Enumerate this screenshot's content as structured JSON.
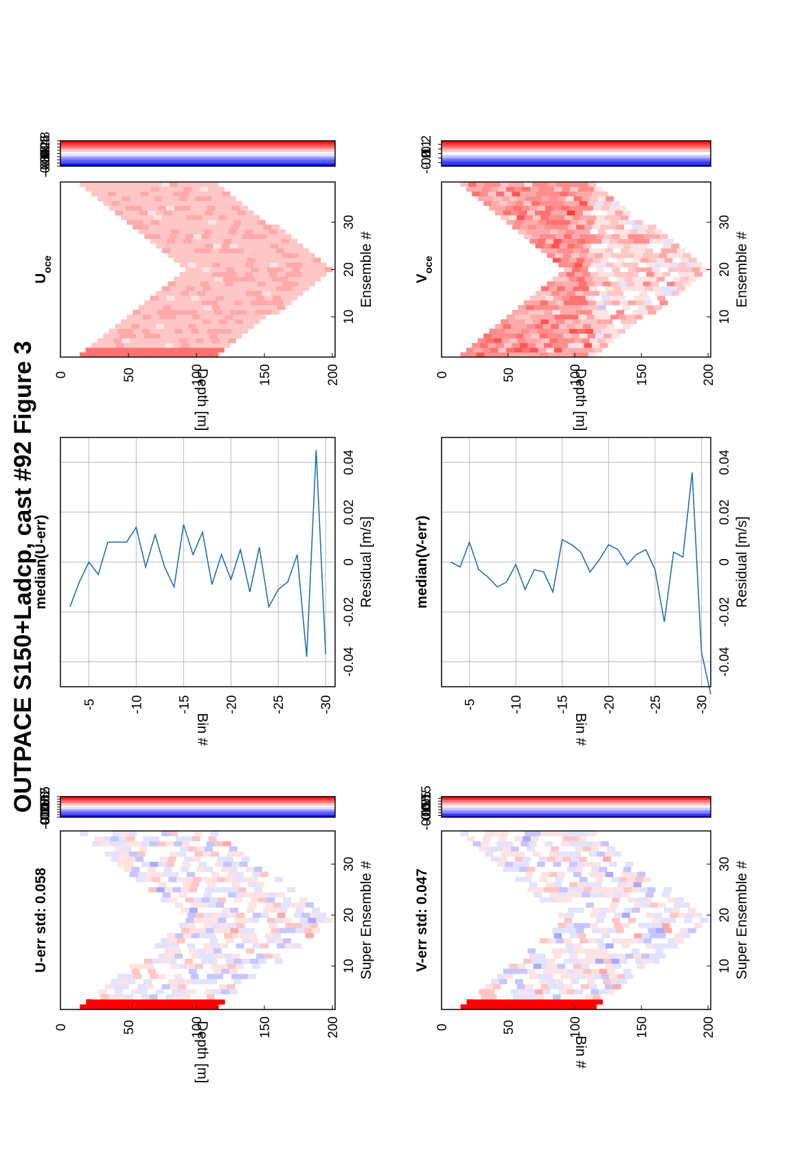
{
  "figure_title": "OUTPACE S150+Ladcp, cast #92  Figure 3",
  "colors": {
    "positive": "#ff0000",
    "negative": "#0000ff",
    "zero": "#ffffff",
    "line": "#1f6fae",
    "grid": "#b8b8b8"
  },
  "chart_data": [
    {
      "id": "u_err",
      "type": "heatmap",
      "title": "U-err std: 0.058",
      "xlabel": "Super Ensemble #",
      "ylabel": "Depth [m]",
      "x_ticks": [
        "10",
        "20",
        "30"
      ],
      "x_tick_values": [
        10,
        20,
        30
      ],
      "y_ticks": [
        "0",
        "50",
        "100",
        "150",
        "200"
      ],
      "y_tick_values": [
        0,
        50,
        100,
        150,
        200
      ],
      "xlim": [
        1.5,
        36.5
      ],
      "ylim": [
        0,
        202
      ],
      "colorbar_ticks": [
        "0.2",
        "0.15",
        "0.1",
        "0.05",
        "0",
        "-0.05",
        "-0.1",
        "-0.15",
        "-0.2"
      ],
      "colorbar_values": [
        0.2,
        0.15,
        0.1,
        0.05,
        0,
        -0.05,
        -0.1,
        -0.15,
        -0.2
      ],
      "clim": [
        -0.2,
        0.2
      ],
      "mask": "V-shaped profile: 12-108 m at ensemble 2, reaching about 200 m near ensemble 19, back to 12-108 m at ensemble 36",
      "value_range": [
        -0.2,
        0.2
      ],
      "colormap": "blue-white-red, 18 steps"
    },
    {
      "id": "median_u_err",
      "type": "line",
      "title": "median(U-err)",
      "xlabel": "Residual [m/s]",
      "ylabel": "Bin #",
      "x_ticks": [
        "-0.04",
        "-0.02",
        "0",
        "0.02",
        "0.04"
      ],
      "x_tick_values": [
        -0.04,
        -0.02,
        0,
        0.02,
        0.04
      ],
      "y_ticks": [
        "-5",
        "-10",
        "-15",
        "-20",
        "-25",
        "-30"
      ],
      "y_tick_values": [
        -5,
        -10,
        -15,
        -20,
        -25,
        -30
      ],
      "xlim": [
        -0.05,
        0.05
      ],
      "ylim": [
        -31,
        -2
      ],
      "grid": true,
      "x": [
        -0.018,
        -0.008,
        0.0,
        -0.005,
        0.008,
        0.008,
        0.008,
        0.014,
        -0.002,
        0.011,
        -0.002,
        -0.01,
        0.015,
        0.003,
        0.012,
        -0.009,
        0.003,
        -0.007,
        0.005,
        -0.012,
        0.006,
        -0.018,
        -0.011,
        -0.008,
        0.003,
        -0.038,
        0.045,
        -0.037
      ],
      "y": [
        -3,
        -4,
        -5,
        -6,
        -7,
        -8,
        -9,
        -10,
        -11,
        -12,
        -13,
        -14,
        -15,
        -16,
        -17,
        -18,
        -19,
        -20,
        -21,
        -22,
        -23,
        -24,
        -25,
        -26,
        -27,
        -28,
        -29,
        -30
      ]
    },
    {
      "id": "u_oce",
      "type": "heatmap",
      "title_main": "U",
      "title_sub": "oce",
      "xlabel": "Ensemble #",
      "ylabel": "Depth [m]",
      "x_ticks": [
        "10",
        "20",
        "30"
      ],
      "x_tick_values": [
        10,
        20,
        30
      ],
      "y_ticks": [
        "0",
        "50",
        "100",
        "150",
        "200"
      ],
      "y_tick_values": [
        0,
        50,
        100,
        150,
        200
      ],
      "xlim": [
        1.5,
        38.5
      ],
      "ylim": [
        0,
        202
      ],
      "colorbar_ticks": [
        "0.8",
        "0.6",
        "0.4",
        "0.2",
        "0",
        "-0.2",
        "-0.4",
        "-0.6",
        "-0.8"
      ],
      "colorbar_values": [
        0.8,
        0.6,
        0.4,
        0.2,
        0,
        -0.2,
        -0.4,
        -0.6,
        -0.8
      ],
      "clim": [
        -0.8,
        0.8
      ],
      "mask": "V-shaped profile: 12-108 m at ensemble 2, reaching about 200 m near ensemble 19, back to 12-108 m at ensemble 38",
      "value_range": [
        0.05,
        0.45
      ],
      "colormap": "blue-white-red, 18 steps"
    },
    {
      "id": "v_err",
      "type": "heatmap",
      "title": "V-err std: 0.047",
      "xlabel": "Super Ensemble #",
      "ylabel": "Bin #",
      "x_ticks": [
        "10",
        "20",
        "30"
      ],
      "x_tick_values": [
        10,
        20,
        30
      ],
      "y_ticks": [
        "0",
        "50",
        "100",
        "150",
        "200"
      ],
      "y_tick_values": [
        0,
        50,
        100,
        150,
        200
      ],
      "xlim": [
        1.5,
        36.5
      ],
      "ylim": [
        0,
        202
      ],
      "colorbar_ticks": [
        "0.15",
        "0.1",
        "0.05",
        "0",
        "-0.05",
        "-0.1",
        "-0.15"
      ],
      "colorbar_values": [
        0.15,
        0.1,
        0.05,
        0,
        -0.05,
        -0.1,
        -0.15
      ],
      "clim": [
        -0.18,
        0.18
      ],
      "mask": "V-shaped profile: 12-108 m at ensemble 2, reaching about 200 m near ensemble 19, back to 12-108 m at ensemble 36",
      "value_range": [
        -0.18,
        0.18
      ],
      "colormap": "blue-white-red, 18 steps"
    },
    {
      "id": "median_v_err",
      "type": "line",
      "title": "median(V-err)",
      "xlabel": "Residual [m/s]",
      "ylabel": "Bin #",
      "x_ticks": [
        "-0.04",
        "-0.02",
        "0",
        "0.02",
        "0.04"
      ],
      "x_tick_values": [
        -0.04,
        -0.02,
        0,
        0.02,
        0.04
      ],
      "y_ticks": [
        "-5",
        "-10",
        "-15",
        "-20",
        "-25",
        "-30"
      ],
      "y_tick_values": [
        -5,
        -10,
        -15,
        -20,
        -25,
        -30
      ],
      "xlim": [
        -0.05,
        0.05
      ],
      "ylim": [
        -31,
        -2
      ],
      "grid": true,
      "x": [
        0.0,
        -0.002,
        0.008,
        -0.003,
        -0.006,
        -0.01,
        -0.008,
        -0.001,
        -0.011,
        -0.003,
        -0.004,
        -0.012,
        0.009,
        0.007,
        0.004,
        -0.004,
        0.001,
        0.007,
        0.005,
        -0.001,
        0.003,
        0.005,
        -0.003,
        -0.024,
        0.004,
        0.002,
        0.036,
        -0.036,
        -0.053
      ],
      "y": [
        -3,
        -4,
        -5,
        -6,
        -7,
        -8,
        -9,
        -10,
        -11,
        -12,
        -13,
        -14,
        -15,
        -16,
        -17,
        -18,
        -19,
        -20,
        -21,
        -22,
        -23,
        -24,
        -25,
        -26,
        -27,
        -28,
        -29,
        -30,
        -31
      ]
    },
    {
      "id": "v_oce",
      "type": "heatmap",
      "title_main": "V",
      "title_sub": "oce",
      "xlabel": "Ensemble #",
      "ylabel": "Depth [m]",
      "x_ticks": [
        "10",
        "20",
        "30"
      ],
      "x_tick_values": [
        10,
        20,
        30
      ],
      "y_ticks": [
        "0",
        "50",
        "100",
        "150",
        "200"
      ],
      "y_tick_values": [
        0,
        50,
        100,
        150,
        200
      ],
      "xlim": [
        1.5,
        38.5
      ],
      "ylim": [
        0,
        202
      ],
      "colorbar_ticks": [
        "0.2",
        "0.1",
        "0",
        "-0.1",
        "-0.2"
      ],
      "colorbar_values": [
        0.2,
        0.1,
        0,
        -0.1,
        -0.2
      ],
      "clim": [
        -0.28,
        0.28
      ],
      "mask": "V-shaped profile: 12-108 m at ensemble 2, reaching about 200 m near ensemble 19, back to 12-108 m at ensemble 38",
      "value_range": [
        -0.08,
        0.24
      ],
      "colormap": "blue-white-red, 18 steps"
    }
  ]
}
